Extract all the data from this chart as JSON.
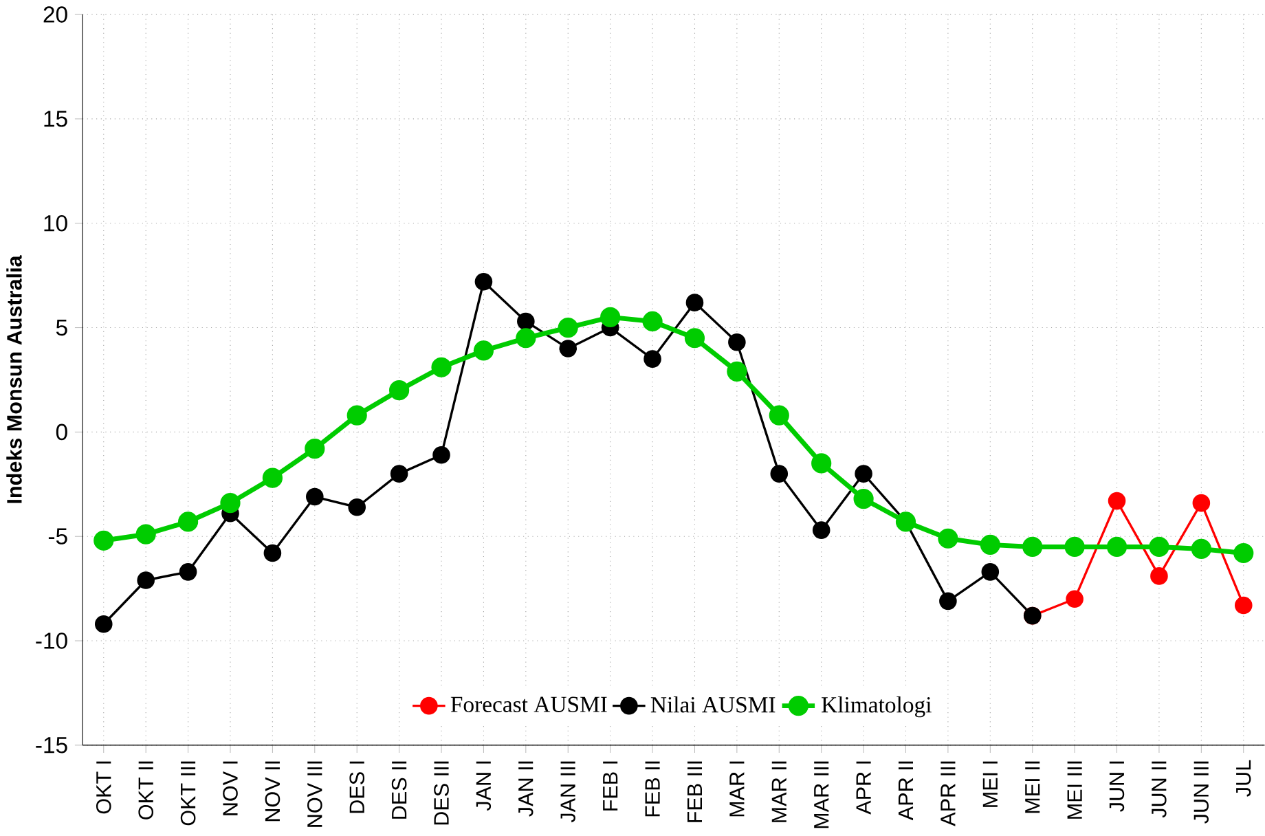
{
  "chart_data": {
    "type": "line",
    "ylabel": "Indeks Monsun Australia",
    "categories": [
      "OKT I",
      "OKT II",
      "OKT III",
      "NOV I",
      "NOV II",
      "NOV III",
      "DES I",
      "DES II",
      "DES III",
      "JAN I",
      "JAN II",
      "JAN III",
      "FEB I",
      "FEB II",
      "FEB III",
      "MAR I",
      "MAR II",
      "MAR III",
      "APR I",
      "APR II",
      "APR III",
      "MEI I",
      "MEI II",
      "MEI III",
      "JUN I",
      "JUN II",
      "JUN III",
      "JUL"
    ],
    "series": [
      {
        "name": "Forecast AUSMI",
        "color": "#ff0000",
        "values": [
          null,
          null,
          null,
          null,
          null,
          null,
          null,
          null,
          null,
          null,
          null,
          null,
          null,
          null,
          null,
          null,
          null,
          null,
          null,
          null,
          null,
          null,
          -8.8,
          -8.0,
          -3.3,
          -6.9,
          -3.4,
          -8.3
        ]
      },
      {
        "name": "Nilai AUSMI",
        "color": "#000000",
        "values": [
          -9.2,
          -7.1,
          -6.7,
          -3.9,
          -5.8,
          -3.1,
          -3.6,
          -2.0,
          -1.1,
          7.2,
          5.3,
          4.0,
          5.0,
          3.5,
          6.2,
          4.3,
          -2.0,
          -4.7,
          -2.0,
          -4.3,
          -8.1,
          -6.7,
          -8.8,
          null,
          null,
          null,
          null,
          null
        ]
      },
      {
        "name": "Klimatologi",
        "color": "#00cc00",
        "values": [
          -5.2,
          -4.9,
          -4.3,
          -3.4,
          -2.2,
          -0.8,
          0.8,
          2.0,
          3.1,
          3.9,
          4.5,
          5.0,
          5.5,
          5.3,
          4.5,
          2.9,
          0.8,
          -1.5,
          -3.2,
          -4.3,
          -5.1,
          -5.4,
          -5.5,
          -5.5,
          -5.5,
          -5.5,
          -5.6,
          -5.8
        ]
      }
    ],
    "ylim": [
      -15,
      20
    ],
    "yticks": [
      -15,
      -10,
      -5,
      0,
      5,
      10,
      15,
      20
    ],
    "grid": true,
    "legend": "bottom",
    "marker": "circle",
    "line_style": "solid"
  }
}
